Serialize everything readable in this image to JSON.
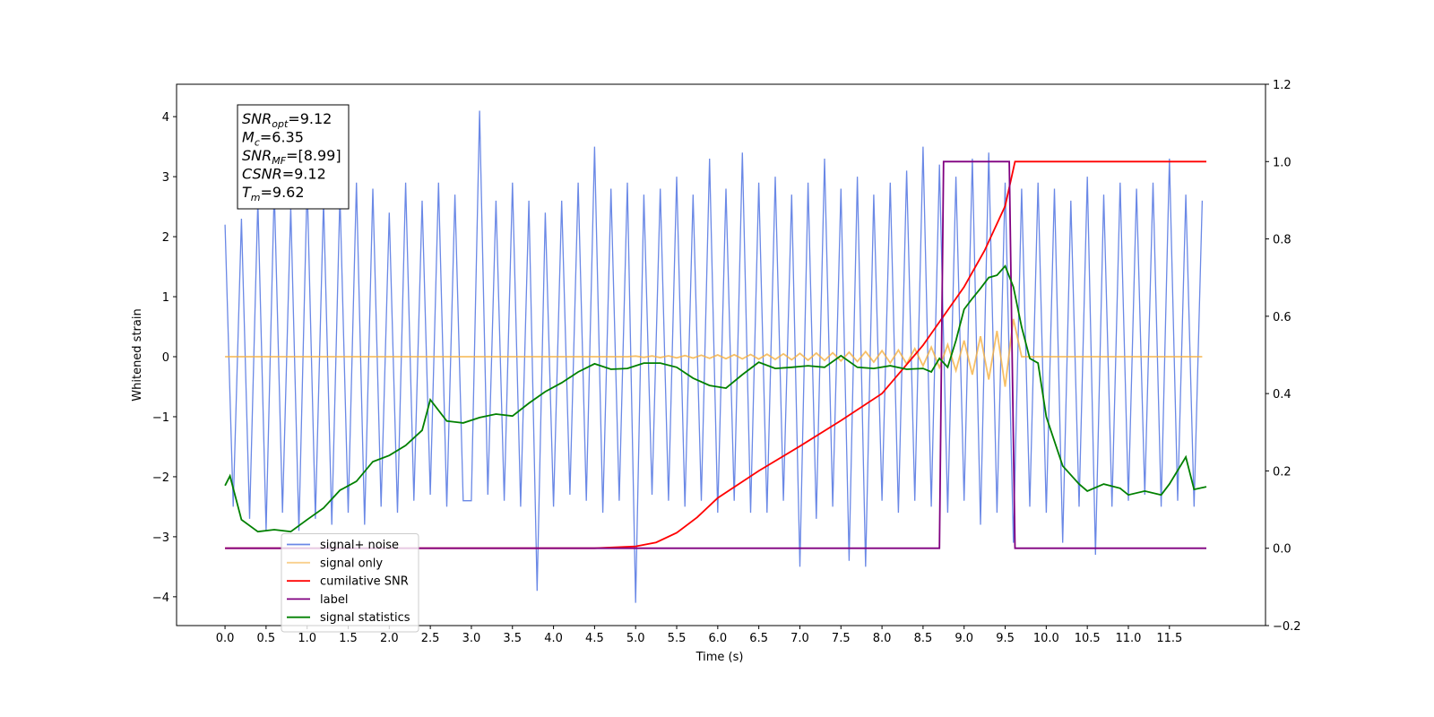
{
  "chart_data": {
    "type": "line",
    "xlabel": "Time (s)",
    "ylabel": "Whitened strain",
    "xlim": [
      -0.59,
      12.67
    ],
    "ylim": [
      -4.48,
      4.54
    ],
    "y2lim": [
      -0.2,
      1.2
    ],
    "xticks": [
      {
        "value": 0,
        "label": "0.0"
      },
      0.5,
      {
        "value": 1,
        "label": "1.0"
      },
      1.5,
      {
        "value": 2,
        "label": "2.0"
      },
      2.5,
      {
        "value": 3,
        "label": "3.0"
      },
      3.5,
      {
        "value": 4,
        "label": "4.0"
      },
      4.5,
      {
        "value": 5,
        "label": "5.0"
      },
      5.5,
      {
        "value": 6,
        "label": "6.0"
      },
      6.5,
      {
        "value": 7,
        "label": "7.0"
      },
      7.5,
      {
        "value": 8,
        "label": "8.0"
      },
      8.5,
      {
        "value": 9,
        "label": "9.0"
      },
      9.5,
      {
        "value": 10,
        "label": "10.0"
      },
      10.5,
      {
        "value": 11,
        "label": "11.0"
      },
      11.5
    ],
    "yticks": [
      {
        "value": -4,
        "label": "−4"
      },
      {
        "value": -3,
        "label": "−3"
      },
      {
        "value": -2,
        "label": "−2"
      },
      {
        "value": -1,
        "label": "−1"
      },
      0,
      1,
      2,
      3,
      4
    ],
    "y2ticks": [
      {
        "value": -0.2,
        "label": "−0.2"
      },
      {
        "value": 0,
        "label": "0.0"
      },
      0.2,
      0.4,
      0.6,
      0.8,
      {
        "value": 1,
        "label": "1.0"
      },
      1.2
    ],
    "legend_loc": "lower left",
    "annotations": [
      {
        "symbol": "SNR",
        "subscript": "opt",
        "text": "=9.12"
      },
      {
        "symbol": "M",
        "subscript": "c",
        "text": "=6.35"
      },
      {
        "symbol": "SNR",
        "subscript": "MF",
        "text": "=[8.99]"
      },
      {
        "symbol": "CSNR",
        "text": "=9.12"
      },
      {
        "symbol": "T",
        "subscript": "m",
        "text": "=9.62"
      }
    ],
    "x": [
      0,
      0.1,
      0.2,
      0.3,
      0.4,
      0.5,
      0.6,
      0.7,
      0.8,
      0.9,
      1,
      1.1,
      1.2,
      1.3,
      1.4,
      1.5,
      1.6,
      1.7,
      1.8,
      1.9,
      2,
      2.1,
      2.2,
      2.3,
      2.4,
      2.5,
      2.6,
      2.7,
      2.8,
      2.9,
      3,
      3.1,
      3.2,
      3.3,
      3.4,
      3.5,
      3.6,
      3.7,
      3.8,
      3.9,
      4,
      4.1,
      4.2,
      4.3,
      4.4,
      4.5,
      4.6,
      4.7,
      4.8,
      4.9,
      5,
      5.1,
      5.2,
      5.3,
      5.4,
      5.5,
      5.6,
      5.7,
      5.8,
      5.9,
      6,
      6.1,
      6.2,
      6.3,
      6.4,
      6.5,
      6.6,
      6.7,
      6.8,
      6.9,
      7,
      7.1,
      7.2,
      7.3,
      7.4,
      7.5,
      7.6,
      7.7,
      7.8,
      7.9,
      8,
      8.1,
      8.2,
      8.3,
      8.4,
      8.5,
      8.6,
      8.7,
      8.8,
      8.9,
      9,
      9.1,
      9.2,
      9.3,
      9.4,
      9.5,
      9.6,
      9.7,
      9.8,
      9.9,
      10,
      10.1,
      10.2,
      10.3,
      10.4,
      10.5,
      10.6,
      10.7,
      10.8,
      10.9,
      11,
      11.1,
      11.2,
      11.3,
      11.4,
      11.5,
      11.6,
      11.7,
      11.8,
      11.9
    ],
    "series": [
      {
        "name": "signal+ noise",
        "color": "#6a88e6",
        "values": [
          2.2,
          -2.5,
          2.3,
          -2.7,
          2.6,
          -2.9,
          2.8,
          -2.6,
          2.5,
          -2.9,
          2.9,
          -2.7,
          2.6,
          -2.8,
          2.7,
          -2.6,
          2.9,
          -2.8,
          2.8,
          -2.5,
          2.4,
          -2.6,
          2.9,
          -2.4,
          2.6,
          -2.3,
          2.9,
          -2.5,
          2.7,
          -2.4,
          -2.4,
          4.1,
          -2.3,
          2.6,
          -2.4,
          2.9,
          -2.5,
          2.6,
          -3.9,
          2.4,
          -2.5,
          2.6,
          -2.3,
          2.9,
          -2.4,
          3.5,
          -2.6,
          2.8,
          -2.4,
          2.9,
          -4.1,
          2.7,
          -2.3,
          2.8,
          -2.4,
          3.0,
          -2.5,
          2.7,
          -2.4,
          3.3,
          -2.6,
          2.8,
          -2.4,
          3.4,
          -2.6,
          2.9,
          -2.6,
          3.0,
          -2.4,
          2.7,
          -3.5,
          2.9,
          -2.7,
          3.3,
          -2.5,
          2.8,
          -3.4,
          3.0,
          -3.5,
          2.7,
          -2.4,
          2.9,
          -2.6,
          3.1,
          -2.4,
          3.5,
          -2.5,
          3.2,
          -2.6,
          3.0,
          -2.4,
          3.3,
          -2.8,
          3.4,
          -2.6,
          2.9,
          -3.1,
          2.8,
          -2.5,
          2.9,
          -2.6,
          2.8,
          -3.1,
          2.6,
          -2.5,
          3.0,
          -3.3,
          2.7,
          -2.5,
          2.9,
          -2.4,
          2.8,
          -2.3,
          2.9,
          -2.5,
          3.3,
          -2.4,
          2.7,
          -2.5,
          2.6
        ]
      },
      {
        "name": "signal only",
        "color": "#f5b041",
        "values": [
          0,
          0,
          0,
          0,
          0,
          0,
          0,
          0,
          0,
          0,
          0,
          0,
          0,
          0,
          0,
          0,
          0,
          0,
          0,
          0,
          0,
          0,
          0,
          0,
          0,
          0,
          0,
          0,
          0,
          0,
          0,
          0,
          0,
          0,
          0,
          0,
          0,
          0,
          0,
          0,
          0,
          0,
          0,
          0,
          0,
          0,
          0,
          0,
          0,
          0,
          0.01,
          -0.01,
          0.012,
          -0.013,
          0.015,
          -0.02,
          0.02,
          -0.022,
          0.025,
          -0.027,
          0.03,
          -0.032,
          0.033,
          -0.035,
          0.037,
          -0.04,
          0.042,
          -0.045,
          0.048,
          -0.05,
          0.055,
          -0.058,
          0.06,
          -0.063,
          0.066,
          -0.07,
          0.075,
          -0.08,
          0.085,
          -0.09,
          0.1,
          -0.105,
          0.11,
          -0.12,
          0.135,
          -0.15,
          0.16,
          -0.18,
          0.2,
          -0.23,
          0.27,
          -0.3,
          0.34,
          -0.38,
          0.43,
          -0.5,
          0.63,
          0,
          0,
          0,
          0,
          0,
          0,
          0,
          0,
          0,
          0,
          0,
          0,
          0,
          0,
          0,
          0,
          0,
          0,
          0,
          0,
          0,
          0,
          0
        ]
      },
      {
        "name": "cumilative SNR",
        "color": "#ff0000",
        "axis": "y2",
        "x": [
          0,
          1,
          2,
          3,
          4,
          4.5,
          5,
          5.25,
          5.5,
          5.75,
          6,
          6.5,
          7,
          7.5,
          8,
          8.5,
          9,
          9.25,
          9.5,
          9.62,
          10,
          11,
          11.95
        ],
        "values": [
          0,
          0,
          0,
          0,
          0,
          0,
          0.005,
          0.015,
          0.04,
          0.08,
          0.13,
          0.2,
          0.264,
          0.33,
          0.4,
          0.525,
          0.676,
          0.77,
          0.885,
          1.0,
          1.0,
          1.0,
          1.0
        ]
      },
      {
        "name": "label",
        "color": "#800080",
        "axis": "y2",
        "x": [
          0,
          8.7,
          8.75,
          9.55,
          9.62,
          11.95
        ],
        "values": [
          0,
          0,
          1,
          1,
          0,
          0
        ]
      },
      {
        "name": "signal statistics",
        "color": "#008000",
        "axis": "y2",
        "x": [
          0,
          0.06,
          0.2,
          0.4,
          0.6,
          0.8,
          1,
          1.2,
          1.4,
          1.6,
          1.8,
          2,
          2.2,
          2.4,
          2.5,
          2.7,
          2.9,
          3.1,
          3.3,
          3.5,
          3.7,
          3.9,
          4.1,
          4.3,
          4.5,
          4.7,
          4.9,
          5.1,
          5.3,
          5.5,
          5.7,
          5.9,
          6.1,
          6.3,
          6.5,
          6.7,
          6.9,
          7.1,
          7.3,
          7.5,
          7.7,
          7.9,
          8.1,
          8.3,
          8.5,
          8.6,
          8.7,
          8.8,
          8.9,
          9,
          9.1,
          9.2,
          9.3,
          9.4,
          9.5,
          9.6,
          9.7,
          9.8,
          9.9,
          10,
          10.2,
          10.4,
          10.5,
          10.7,
          10.9,
          11,
          11.2,
          11.4,
          11.5,
          11.7,
          11.8,
          11.95
        ],
        "values": [
          0.162,
          0.187,
          0.074,
          0.043,
          0.048,
          0.043,
          0.074,
          0.104,
          0.15,
          0.173,
          0.224,
          0.24,
          0.266,
          0.305,
          0.384,
          0.329,
          0.324,
          0.338,
          0.347,
          0.342,
          0.375,
          0.405,
          0.428,
          0.456,
          0.477,
          0.463,
          0.465,
          0.479,
          0.479,
          0.468,
          0.44,
          0.421,
          0.414,
          0.449,
          0.481,
          0.465,
          0.468,
          0.472,
          0.468,
          0.498,
          0.468,
          0.465,
          0.472,
          0.463,
          0.465,
          0.456,
          0.491,
          0.468,
          0.537,
          0.618,
          0.646,
          0.672,
          0.7,
          0.706,
          0.73,
          0.676,
          0.572,
          0.491,
          0.479,
          0.34,
          0.213,
          0.166,
          0.148,
          0.166,
          0.155,
          0.138,
          0.148,
          0.138,
          0.166,
          0.236,
          0.152,
          0.159
        ]
      }
    ]
  }
}
